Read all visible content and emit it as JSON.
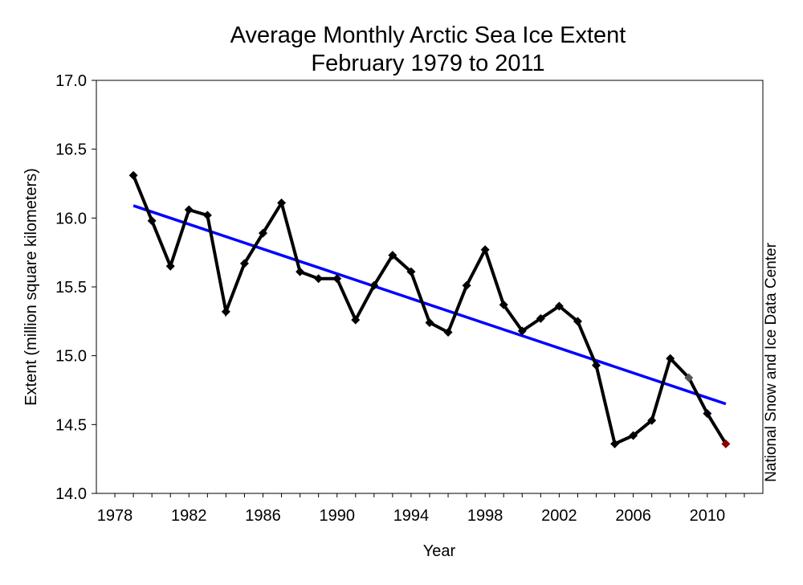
{
  "chart_data": {
    "type": "line",
    "title": "Average Monthly Arctic Sea Ice Extent",
    "subtitle": "February 1979 to 2011",
    "xlabel": "Year",
    "ylabel": "Extent (million square kilometers)",
    "credit": "National Snow and Ice Data Center",
    "xlim": [
      1977,
      2013
    ],
    "ylim": [
      14.0,
      17.0
    ],
    "xticks": [
      1978,
      1982,
      1986,
      1990,
      1994,
      1998,
      2002,
      2006,
      2010
    ],
    "yticks": [
      14.0,
      14.5,
      15.0,
      15.5,
      16.0,
      16.5,
      17.0
    ],
    "ytick_labels": [
      "14.0",
      "14.5",
      "15.0",
      "15.5",
      "16.0",
      "16.5",
      "17.0"
    ],
    "grid": false,
    "series": [
      {
        "x": [
          1979,
          1980,
          1981,
          1982,
          1983,
          1984,
          1985,
          1986,
          1987,
          1988,
          1989,
          1990,
          1991,
          1992,
          1993,
          1994,
          1995,
          1996,
          1997,
          1998,
          1999,
          2000,
          2001,
          2002,
          2003,
          2004,
          2005,
          2006,
          2007,
          2008,
          2009,
          2010,
          2011
        ],
        "values": [
          16.31,
          15.98,
          15.65,
          16.06,
          16.02,
          15.32,
          15.67,
          15.89,
          16.11,
          15.61,
          15.56,
          15.56,
          15.26,
          15.51,
          15.73,
          15.61,
          15.24,
          15.17,
          15.51,
          15.77,
          15.37,
          15.18,
          15.27,
          15.36,
          15.25,
          14.93,
          14.36,
          14.42,
          14.53,
          14.98,
          14.84,
          14.58,
          14.36
        ],
        "color": "#000000",
        "marker_color": "#000000",
        "highlight_colors": {
          "2009": "#555555",
          "2011": "#8b0000"
        }
      },
      {
        "type": "trend",
        "x": [
          1979,
          2011
        ],
        "values": [
          16.09,
          14.65
        ],
        "color": "#0000ff"
      }
    ]
  }
}
